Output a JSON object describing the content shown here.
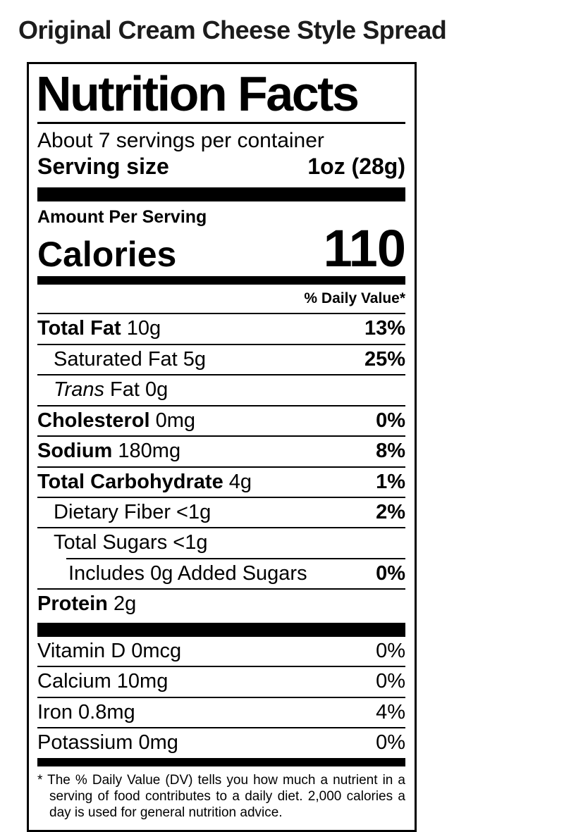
{
  "page": {
    "title": "Original Cream Cheese Style Spread"
  },
  "label": {
    "title": "Nutrition Facts",
    "servings_per_container": "About 7 servings per container",
    "serving_size_label": "Serving size",
    "serving_size_value": "1oz (28g)",
    "amount_per_serving": "Amount Per Serving",
    "calories_label": "Calories",
    "calories_value": "110",
    "daily_value_header": "% Daily Value*",
    "nutrients": [
      {
        "lead": "Total Fat",
        "lead_bold": true,
        "lead_italic": false,
        "amount": "10g",
        "dv": "13%",
        "dv_bold": true,
        "indent": 0,
        "sep_indent": 0
      },
      {
        "lead": "Saturated Fat",
        "lead_bold": false,
        "lead_italic": false,
        "amount": "5g",
        "dv": "25%",
        "dv_bold": true,
        "indent": 1,
        "sep_indent": 0
      },
      {
        "lead": "Trans",
        "lead_bold": false,
        "lead_italic": true,
        "amount": "Fat 0g",
        "dv": "",
        "dv_bold": false,
        "indent": 1,
        "sep_indent": 0
      },
      {
        "lead": "Cholesterol",
        "lead_bold": true,
        "lead_italic": false,
        "amount": "0mg",
        "dv": "0%",
        "dv_bold": true,
        "indent": 0,
        "sep_indent": 0
      },
      {
        "lead": "Sodium",
        "lead_bold": true,
        "lead_italic": false,
        "amount": "180mg",
        "dv": "8%",
        "dv_bold": true,
        "indent": 0,
        "sep_indent": 0
      },
      {
        "lead": "Total Carbohydrate",
        "lead_bold": true,
        "lead_italic": false,
        "amount": "4g",
        "dv": "1%",
        "dv_bold": true,
        "indent": 0,
        "sep_indent": 0
      },
      {
        "lead": "Dietary Fiber",
        "lead_bold": false,
        "lead_italic": false,
        "amount": "<1g",
        "dv": "2%",
        "dv_bold": true,
        "indent": 1,
        "sep_indent": 0
      },
      {
        "lead": "Total Sugars",
        "lead_bold": false,
        "lead_italic": false,
        "amount": "<1g",
        "dv": "",
        "dv_bold": false,
        "indent": 1,
        "sep_indent": 0
      },
      {
        "lead": "Includes 0g Added Sugars",
        "lead_bold": false,
        "lead_italic": false,
        "amount": "",
        "dv": "0%",
        "dv_bold": true,
        "indent": 2,
        "sep_indent": 41
      },
      {
        "lead": "Protein",
        "lead_bold": true,
        "lead_italic": false,
        "amount": "2g",
        "dv": "",
        "dv_bold": false,
        "indent": 0,
        "sep_indent": 0
      }
    ],
    "micronutrients": [
      {
        "text": "Vitamin D 0mcg",
        "dv": "0%"
      },
      {
        "text": "Calcium 10mg",
        "dv": "0%"
      },
      {
        "text": "Iron 0.8mg",
        "dv": "4%"
      },
      {
        "text": "Potassium 0mg",
        "dv": "0%"
      }
    ],
    "footnote": "* The % Daily Value (DV) tells you how much a nutrient in a serving of food contributes to a daily diet. 2,000 calories a day is used for general nutrition advice."
  },
  "colors": {
    "text": "#000000",
    "background": "#ffffff",
    "border": "#000000",
    "title_text": "#1c1c1c"
  }
}
